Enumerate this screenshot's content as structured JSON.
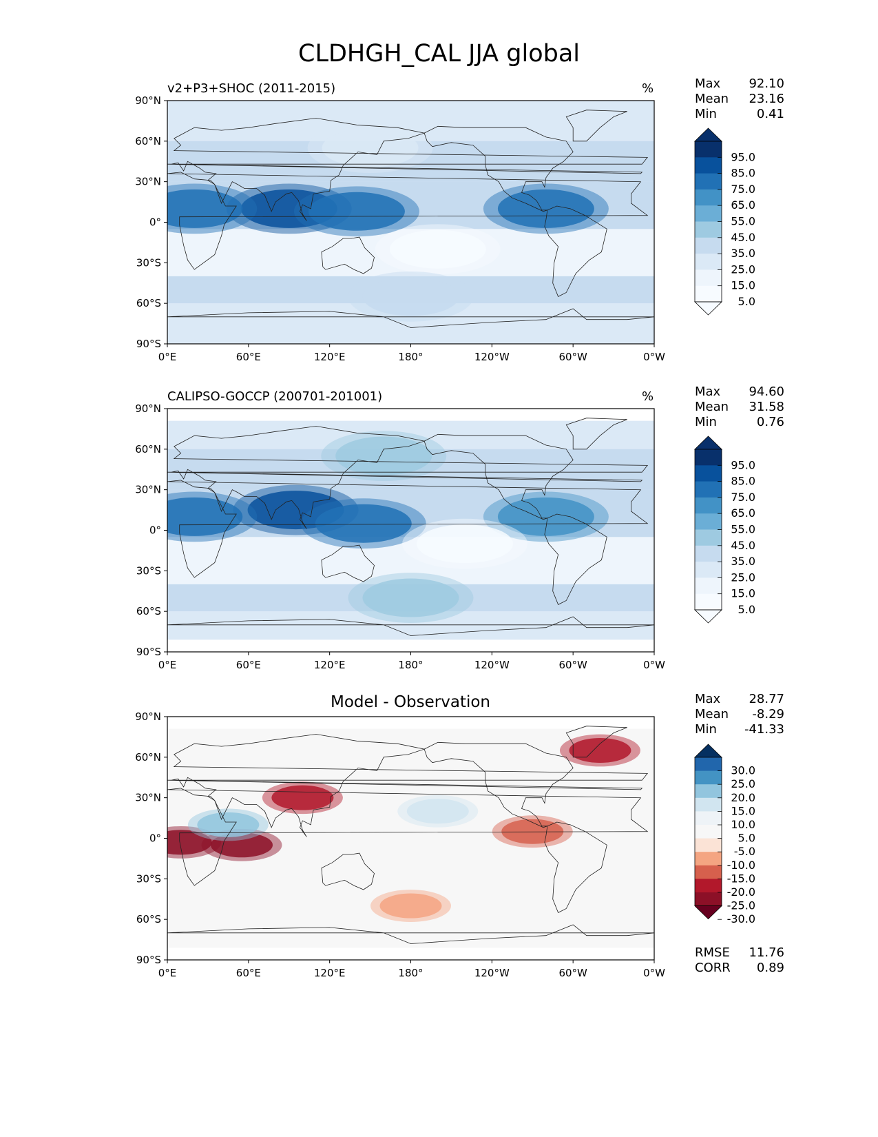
{
  "figure": {
    "title": "CLDHGH_CAL JJA global"
  },
  "panels": [
    {
      "id": "model",
      "left_label": "v2+P3+SHOC (2011-2015)",
      "right_label": "%",
      "center_title": "",
      "stats": [
        {
          "label": "Max",
          "value": "92.10"
        },
        {
          "label": "Mean",
          "value": "23.16"
        },
        {
          "label": "Min",
          "value": "0.41"
        }
      ],
      "extra_stats": []
    },
    {
      "id": "obs",
      "left_label": "CALIPSO-GOCCP (200701-201001)",
      "right_label": "%",
      "center_title": "",
      "stats": [
        {
          "label": "Max",
          "value": "94.60"
        },
        {
          "label": "Mean",
          "value": "31.58"
        },
        {
          "label": "Min",
          "value": "0.76"
        }
      ],
      "extra_stats": []
    },
    {
      "id": "diff",
      "left_label": "",
      "right_label": "",
      "center_title": "Model - Observation",
      "stats": [
        {
          "label": "Max",
          "value": "28.77"
        },
        {
          "label": "Mean",
          "value": "-8.29"
        },
        {
          "label": "Min",
          "value": "-41.33"
        }
      ],
      "extra_stats": [
        {
          "label": "RMSE",
          "value": "11.76"
        },
        {
          "label": "CORR",
          "value": "0.89"
        }
      ]
    }
  ],
  "axes": {
    "lon_ticks": [
      "0°E",
      "60°E",
      "120°E",
      "180°",
      "120°W",
      "60°W",
      "0°W"
    ],
    "lat_ticks": [
      "90°N",
      "60°N",
      "30°N",
      "0°",
      "30°S",
      "60°S",
      "90°S"
    ]
  },
  "chart_data": [
    {
      "type": "heatmap",
      "title": "v2+P3+SHOC (2011-2015)",
      "units": "%",
      "colorbar": {
        "levels": [
          "95.0",
          "85.0",
          "75.0",
          "65.0",
          "55.0",
          "45.0",
          "35.0",
          "25.0",
          "15.0",
          "5.0"
        ],
        "colors": [
          "#08306b",
          "#08519c",
          "#2171b5",
          "#4292c6",
          "#6baed6",
          "#9ecae1",
          "#c6dbef",
          "#dbe9f6",
          "#eef5fc",
          "#f7fbff"
        ]
      },
      "bands": [
        {
          "lat": 10,
          "lon": 90,
          "value": 85
        },
        {
          "lat": 8,
          "lon": 140,
          "value": 75
        },
        {
          "lat": 10,
          "lon": 280,
          "value": 80
        },
        {
          "lat": 10,
          "lon": 20,
          "value": 75
        },
        {
          "lat": -20,
          "lon": 200,
          "value": 10
        },
        {
          "lat": -55,
          "lon": 180,
          "value": 35
        },
        {
          "lat": 55,
          "lon": 150,
          "value": 30
        }
      ]
    },
    {
      "type": "heatmap",
      "title": "CALIPSO-GOCCP (200701-201001)",
      "units": "%",
      "colorbar": {
        "levels": [
          "95.0",
          "85.0",
          "75.0",
          "65.0",
          "55.0",
          "45.0",
          "35.0",
          "25.0",
          "15.0",
          "5.0"
        ],
        "colors": [
          "#08306b",
          "#08519c",
          "#2171b5",
          "#4292c6",
          "#6baed6",
          "#9ecae1",
          "#c6dbef",
          "#dbe9f6",
          "#eef5fc",
          "#f7fbff"
        ]
      },
      "bands": [
        {
          "lat": 15,
          "lon": 95,
          "value": 90
        },
        {
          "lat": 5,
          "lon": 145,
          "value": 75
        },
        {
          "lat": 10,
          "lon": 280,
          "value": 70
        },
        {
          "lat": 10,
          "lon": 20,
          "value": 75
        },
        {
          "lat": -10,
          "lon": 220,
          "value": 10
        },
        {
          "lat": -50,
          "lon": 180,
          "value": 50
        },
        {
          "lat": 55,
          "lon": 160,
          "value": 45
        }
      ]
    },
    {
      "type": "heatmap",
      "title": "Model - Observation",
      "units": "",
      "colorbar": {
        "levels": [
          "30.0",
          "25.0",
          "20.0",
          "15.0",
          "10.0",
          "5.0",
          "-5.0",
          "-10.0",
          "-15.0",
          "-20.0",
          "-25.0",
          "-30.0"
        ],
        "colors": [
          "#053061",
          "#2166ac",
          "#4393c3",
          "#92c5de",
          "#d1e5f0",
          "#eef3f7",
          "#f7f7f7",
          "#fbe3d6",
          "#f4a582",
          "#d6604d",
          "#b2182b",
          "#8c1027",
          "#67001f"
        ]
      },
      "bands": [
        {
          "lat": -5,
          "lon": 55,
          "value": -30
        },
        {
          "lat": -3,
          "lon": 10,
          "value": -28
        },
        {
          "lat": 30,
          "lon": 100,
          "value": -22
        },
        {
          "lat": 65,
          "lon": 320,
          "value": -25
        },
        {
          "lat": 5,
          "lon": 270,
          "value": -18
        },
        {
          "lat": 20,
          "lon": 200,
          "value": 12
        },
        {
          "lat": 10,
          "lon": 45,
          "value": 15
        },
        {
          "lat": -50,
          "lon": 180,
          "value": -15
        }
      ]
    }
  ]
}
